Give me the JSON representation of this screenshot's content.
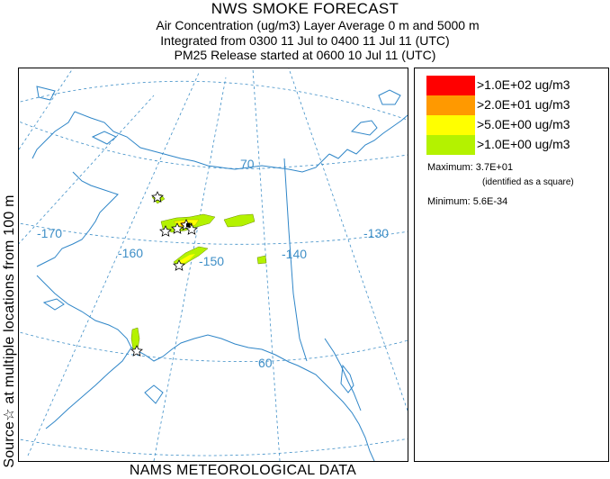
{
  "title": "NWS SMOKE FORECAST",
  "subtitle_lines": [
    "Air Concentration (ug/m3) Layer Average    0 m and  5000 m",
    "Integrated from 0300 11 Jul to 0400 11 Jul 11 (UTC)",
    "PM25 Release started at 0600 10 Jul 11 (UTC)"
  ],
  "side_label": "Source☆ at multiple locations  from  100 m",
  "bottom_label": "NAMS METEOROLOGICAL DATA",
  "map": {
    "longitude_labels": [
      "-170",
      "-160",
      "-150",
      "-140",
      "-130"
    ],
    "latitude_labels": [
      "70",
      "60"
    ],
    "colors": {
      "graticule": "#3f8fc7",
      "coast": "#2f86c8",
      "plume_green": "#b4f200",
      "plume_yellow": "#ffff00",
      "plume_orange": "#ff9900"
    }
  },
  "legend": {
    "levels": [
      {
        "label": ">1.0E+02 ug/m3",
        "color": "#ff0000"
      },
      {
        "label": ">2.0E+01 ug/m3",
        "color": "#ff9900"
      },
      {
        "label": ">5.0E+00 ug/m3",
        "color": "#ffff00"
      },
      {
        "label": ">1.0E+00 ug/m3",
        "color": "#b4f200"
      }
    ],
    "maximum_label": "Maximum: 3.7E+01",
    "maximum_note": "(identified as a square)",
    "minimum_label": "Minimum: 5.6E-34"
  }
}
